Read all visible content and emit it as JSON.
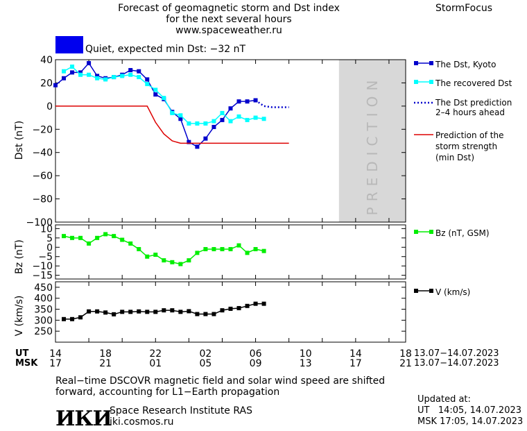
{
  "header": {
    "title_line1": "Forecast of geomagnetic storm and Dst index",
    "title_line2": "for the next several hours",
    "url": "www.spaceweather.ru",
    "brand": "StormFocus"
  },
  "status": {
    "box_color": "#0000ee",
    "text": "Quiet, expected min Dst: −32 nT"
  },
  "colors": {
    "dst": "#0000cc",
    "recovered": "#00ffff",
    "prediction_dots": "#0000cc",
    "strength": "#dd0000",
    "bz": "#00ee00",
    "v": "#000000",
    "prediction_band": "#d8d8d8"
  },
  "chart_data": [
    {
      "type": "line",
      "ylabel": "Dst (nT)",
      "ylim": [
        -100,
        40
      ],
      "yticks": [
        "40",
        "20",
        "0",
        "−20",
        "−40",
        "−60",
        "−80",
        "−100"
      ],
      "prediction_label": "PREDICTION",
      "prediction_region": [
        48,
        56
      ],
      "series": [
        {
          "name": "The Dst, Kyoto",
          "x": [
            14,
            15,
            16,
            17,
            18,
            19,
            20,
            21,
            22,
            23,
            24,
            25,
            26,
            27,
            28,
            29,
            30,
            31,
            32,
            33,
            34,
            35,
            36,
            37,
            38
          ],
          "values": [
            18,
            24,
            29,
            29,
            37,
            26,
            24,
            25,
            27,
            31,
            30,
            23,
            10,
            6,
            -5,
            -11,
            -31,
            -35,
            -28,
            -18,
            -12,
            -2,
            4,
            4,
            5
          ]
        },
        {
          "name": "The recovered Dst",
          "x": [
            15,
            16,
            17,
            18,
            19,
            20,
            21,
            22,
            23,
            24,
            25,
            26,
            27,
            28,
            29,
            30,
            31,
            32,
            33,
            34,
            35,
            36,
            37,
            38,
            39
          ],
          "values": [
            30,
            34,
            27,
            27,
            24,
            23,
            25,
            26,
            27,
            25,
            19,
            14,
            7,
            -6,
            -8,
            -15,
            -15,
            -15,
            -13,
            -6,
            -13,
            -9,
            -12,
            -10,
            -11
          ]
        },
        {
          "name": "The Dst prediction\n2–4 hours ahead",
          "x": [
            38,
            39,
            40,
            41,
            42
          ],
          "values": [
            5,
            0,
            -1,
            -1,
            -1
          ]
        },
        {
          "name": "Prediction of the\nstorm strength\n(min Dst)",
          "x": [
            14,
            25,
            26,
            27,
            28,
            29,
            30,
            31,
            32,
            33,
            34,
            35,
            36,
            37,
            38,
            39,
            40,
            41,
            42
          ],
          "values": [
            0,
            0,
            -14,
            -24,
            -30,
            -32,
            -32,
            -32,
            -32,
            -32,
            -32,
            -32,
            -32,
            -32,
            -32,
            -32,
            -32,
            -32,
            -32
          ]
        }
      ]
    },
    {
      "type": "line",
      "ylabel": "Bz (nT)",
      "ylim": [
        -17,
        12
      ],
      "yticks": [
        "10",
        "5",
        "0",
        "−5",
        "−10",
        "−15"
      ],
      "series": [
        {
          "name": "Bz (nT, GSM)",
          "x": [
            15,
            16,
            17,
            18,
            19,
            20,
            21,
            22,
            23,
            24,
            25,
            26,
            27,
            28,
            29,
            30,
            31,
            32,
            33,
            34,
            35,
            36,
            37,
            38,
            39
          ],
          "values": [
            6,
            5,
            5,
            2,
            5,
            7,
            6,
            4,
            2,
            -1,
            -5,
            -4,
            -7,
            -8,
            -9,
            -7,
            -3,
            -1,
            -1,
            -1,
            -1,
            1,
            -3,
            -1,
            -2
          ]
        }
      ]
    },
    {
      "type": "line",
      "ylabel": "V (km/s)",
      "ylim": [
        200,
        475
      ],
      "yticks": [
        "450",
        "400",
        "350",
        "300",
        "250"
      ],
      "series": [
        {
          "name": "V (km/s)",
          "x": [
            15,
            16,
            17,
            18,
            19,
            20,
            21,
            22,
            23,
            24,
            25,
            26,
            27,
            28,
            29,
            30,
            31,
            32,
            33,
            34,
            35,
            36,
            37,
            38,
            39
          ],
          "values": [
            305,
            305,
            313,
            340,
            340,
            335,
            327,
            338,
            338,
            340,
            338,
            338,
            345,
            345,
            338,
            341,
            328,
            328,
            328,
            345,
            352,
            355,
            365,
            375,
            375
          ]
        }
      ]
    }
  ],
  "xaxis": {
    "ut_label": "UT",
    "msk_label": "MSK",
    "ut_ticks": [
      "14",
      "18",
      "22",
      "02",
      "06",
      "10",
      "14",
      "18"
    ],
    "msk_ticks": [
      "17",
      "21",
      "01",
      "05",
      "09",
      "13",
      "17",
      "21"
    ],
    "ut_range": "13.07−14.07.2023",
    "msk_range": "13.07−14.07.2023"
  },
  "footer": {
    "note_line1": "Real−time DSCOVR magnetic field and solar wind speed are shifted",
    "note_line2": "forward, accounting for L1−Earth propagation",
    "logo_text": "ИКИ",
    "institute": "Space Research Institute RAS",
    "site": "iki.cosmos.ru",
    "updated_label": "Updated at:",
    "updated_ut": "UT   14:05, 14.07.2023",
    "updated_msk": "MSK 17:05, 14.07.2023"
  }
}
